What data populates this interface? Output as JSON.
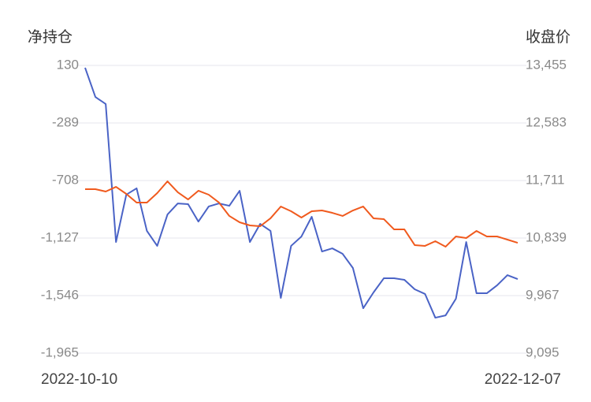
{
  "chart_data": {
    "type": "line",
    "y_title": "净持仓",
    "y2_title": "收盘价",
    "categories": [
      "2022-10-10",
      null,
      null,
      null,
      null,
      null,
      null,
      null,
      null,
      null,
      null,
      null,
      null,
      null,
      null,
      null,
      null,
      null,
      null,
      null,
      null,
      null,
      null,
      null,
      null,
      null,
      null,
      null,
      null,
      null,
      null,
      null,
      null,
      null,
      null,
      null,
      null,
      null,
      null,
      null,
      null,
      null,
      "2022-12-07"
    ],
    "series": [
      {
        "name": "净持仓",
        "color": "#4a63c6",
        "values": [
          113,
          -100,
          -151,
          -1156,
          -811,
          -765,
          -1075,
          -1184,
          -955,
          -875,
          -880,
          -1007,
          -897,
          -875,
          -892,
          -783,
          -1156,
          -1024,
          -1075,
          -1563,
          -1184,
          -1116,
          -972,
          -1225,
          -1202,
          -1242,
          -1345,
          -1638,
          -1523,
          -1420,
          -1420,
          -1431,
          -1500,
          -1534,
          -1707,
          -1690,
          -1569,
          -1156,
          -1529,
          -1529,
          -1471,
          -1397,
          -1426
        ]
      },
      {
        "name": "收盘价",
        "color": "#f05a1e",
        "axis": "y2",
        "values": [
          11580,
          11580,
          11544,
          11615,
          11508,
          11377,
          11377,
          11520,
          11699,
          11532,
          11424,
          11556,
          11496,
          11377,
          11174,
          11078,
          11030,
          11018,
          11138,
          11317,
          11245,
          11150,
          11245,
          11257,
          11221,
          11174,
          11257,
          11317,
          11138,
          11126,
          10970,
          10970,
          10732,
          10720,
          10791,
          10708,
          10863,
          10839,
          10947,
          10863,
          10863,
          10815,
          10767
        ]
      }
    ],
    "ylim": [
      -1965,
      130
    ],
    "yticks": [
      130,
      -289,
      -708,
      {
        "value": -1127,
        "label": "-1,127"
      },
      {
        "value": -1546,
        "label": "-1,546"
      },
      {
        "value": -1965,
        "label": "-1,965"
      }
    ],
    "y2lim": [
      9095,
      13455
    ],
    "y2ticks": [
      {
        "value": 13455,
        "label": "13,455"
      },
      {
        "value": 12583,
        "label": "12,583"
      },
      {
        "value": 11711,
        "label": "11,711"
      },
      {
        "value": 10839,
        "label": "10,839"
      },
      {
        "value": 9967,
        "label": "9,967"
      },
      {
        "value": 9095,
        "label": "9,095"
      }
    ],
    "grid": true
  }
}
